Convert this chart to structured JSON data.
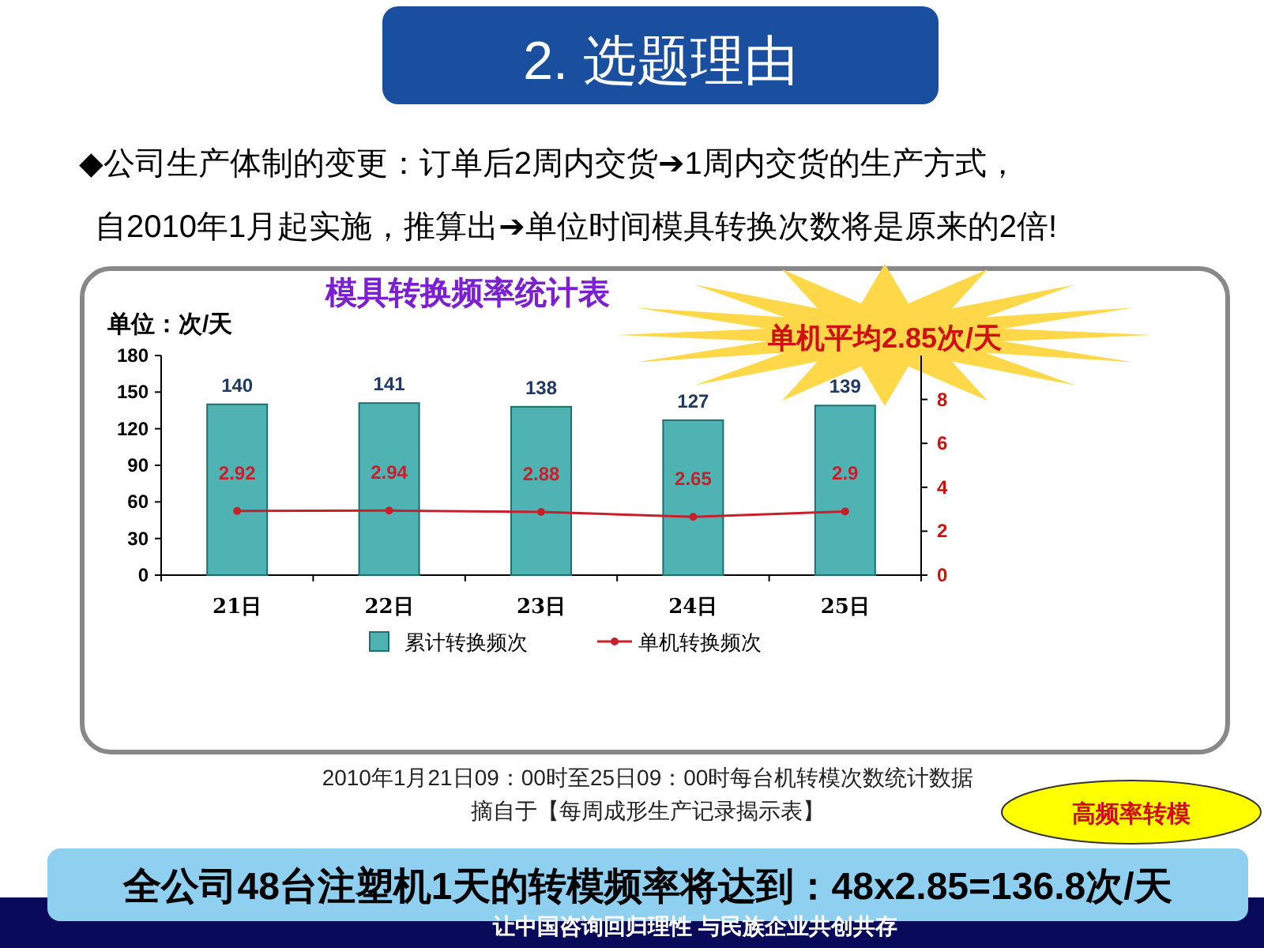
{
  "chart_data": {
    "type": "bar",
    "title": "模具转换频率统计表",
    "ylabel": "单位：次/天",
    "categories": [
      "21日",
      "22日",
      "23日",
      "24日",
      "25日"
    ],
    "series": [
      {
        "name": "累计转换频次",
        "color": "#4fb3b3",
        "values": [
          140,
          141,
          138,
          127,
          139
        ]
      },
      {
        "name": "单机转换频次",
        "type": "line",
        "axis": "y2",
        "color": "#c8202a",
        "values": [
          2.92,
          2.94,
          2.88,
          2.65,
          2.9
        ]
      }
    ],
    "ylim": [
      0,
      180
    ],
    "yticks": [
      0,
      30,
      60,
      90,
      120,
      150,
      180
    ],
    "y2lim": [
      0,
      10
    ],
    "y2ticks": [
      0,
      2,
      4,
      6,
      8
    ],
    "data_labels": true,
    "legend": "bottom",
    "marker": "circle",
    "line_style": "solid",
    "annotations": [
      "2. 选题理由",
      "◆公司生产体制的变更：订单后2周内交货➔1周内交货的生产方式，",
      "自2010年1月起实施，推算出➔单位时间模具转换次数将是原来的2倍!",
      "单机平均2.85次/天",
      "2010年1月21日09：00时至25日09：00时每台机转模次数统计数据",
      "摘自于【每周成形生产记录揭示表】",
      "高频率转模",
      "全公司48台注塑机1天的转模频率将达到：48x2.85=136.8次/天",
      "让中国咨询回归理性 与民族企业共创共存"
    ]
  }
}
